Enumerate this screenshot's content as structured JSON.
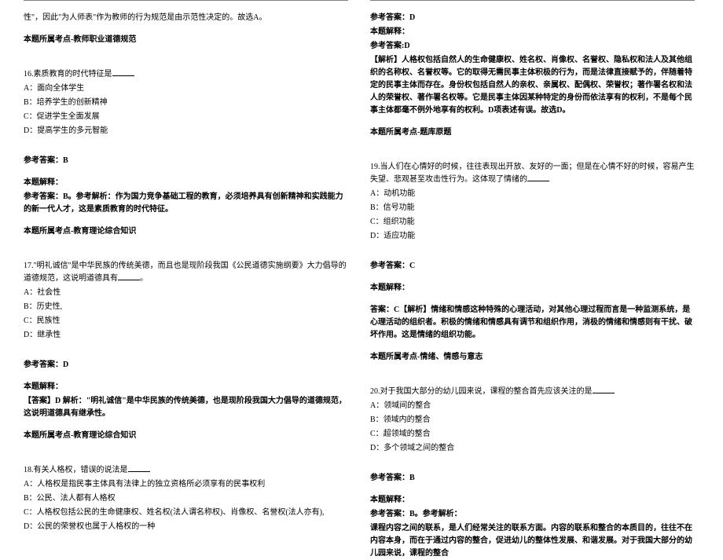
{
  "colors": {
    "text": "#000000",
    "bg": "#ffffff",
    "rule": "#808080"
  },
  "font": {
    "family": "SimSun",
    "size_pt": 10,
    "line_height": 1.6
  },
  "left": {
    "intro1": "性\"，因此\"为人师表\"作为教师的行为规范是由示范性决定的。故选A。",
    "intro2": "本题所属考点-教师职业道德规范",
    "q16": {
      "stem": "16.素质教育的时代特征是",
      "A": "A：面向全体学生",
      "B": "B：培养学生的创新精神",
      "C": "C：促进学生全面发展",
      "D": "D：提高学生的多元智能",
      "ans": "参考答案：B",
      "exp_t": "本题解释：",
      "exp": "参考答案：B。参考解析：作为国力竞争基础工程的教育，必须培养具有创新精神和实践能力的新一代人才，这是素质教育的时代特征。",
      "topic": "本题所属考点-教育理论综合知识"
    },
    "q17": {
      "stem1": "17.\"明礼诚信\"是中华民族的传统美德，而且也是现阶段我国《公民道德实施纲要》大力倡导的道德规范，这说明道德具有",
      "stem2": "。",
      "A": "A：社会性",
      "B": "B：历史性,",
      "C": "C：民族性",
      "D": "D：继承性",
      "ans": "参考答案：D",
      "exp_t": "本题解释：",
      "exp": "【答案】D 解析：\"明礼诚信\"是中华民族的传统美德，也是现阶段我国大力倡导的道德规范，这说明道德具有继承性。",
      "topic": "本题所属考点-教育理论综合知识"
    },
    "q18": {
      "stem": "18.有关人格权，错误的说法是",
      "A": "A：人格权是指民事主体具有法律上的独立资格所必须享有的民事权利",
      "B": "B：公民、法人都有人格权",
      "C": "C：人格权包括公民的生命健康权、姓名权(法人谓名称权)、肖像权、名誉权(法人亦有),",
      "D": "D：公民的荣誉权也属于人格权的一种"
    }
  },
  "right": {
    "q18c": {
      "ans": "参考答案：D",
      "exp_t": "本题解释：",
      "exp_a": "参考答案:D",
      "exp": "【解析】人格权包括自然人的生命健康权、姓名权、肖像权、名誉权、隐私权和法人及其他组织的名称权、名誉权等。它的取得无需民事主体积极的行为，而是法律直接赋予的，伴随着特定的民事主体而存在。身份权包括自然人的亲权、亲属权、配偶权、荣誉权；著作署名权和法人的荣誉权、著作署名权等。它是民事主体因某种特定的身份而依法享有的权利，不是每个民事主体都毫不例外地享有的权利。D项表述有误。故选D。",
      "topic": "本题所属考点-题库原题"
    },
    "q19": {
      "stem": "19.当人们在心情好的时候，往往表现出开放、友好的一面；但是在心情不好的时候，容易产生失望、悲观甚至攻击性行为。这体现了情绪的",
      "A": "A：动机功能",
      "B": "B：信号功能",
      "C": "C：组织功能",
      "D": "D：适应功能",
      "ans": "参考答案：C",
      "exp_t": "本题解释：",
      "exp": "答案：C【解析】情绪和情感这种特殊的心理活动，对其他心理过程而言是一种监测系统，是心理活动的组织者。积极的情绪和情感具有调节和组织作用，消极的情绪和情感则有干扰、破坏作用。这是情绪的组织功能。",
      "topic": "本题所属考点-情绪、情感与意志"
    },
    "q20": {
      "stem": "20.对于我国大部分的幼儿园来说，课程的整合首先应该关注的是",
      "A": "A：领域间的整合",
      "B": "B：领域内的整合",
      "C": "C：超领域的整合",
      "D": "D：多个领域之间的整合",
      "ans": "参考答案：B",
      "exp_t": "本题解释：",
      "exp_a": "参考答案：B。参考解析：",
      "exp": "课程内容之间的联系，是人们经常关注的联系方面。内容的联系和整合的本质目的，往往不在内容本身，而在于通过内容的整合，促进幼儿的整体性发展、和谐发展。对于我国大部分的幼儿园来说，课程的整合"
    }
  }
}
